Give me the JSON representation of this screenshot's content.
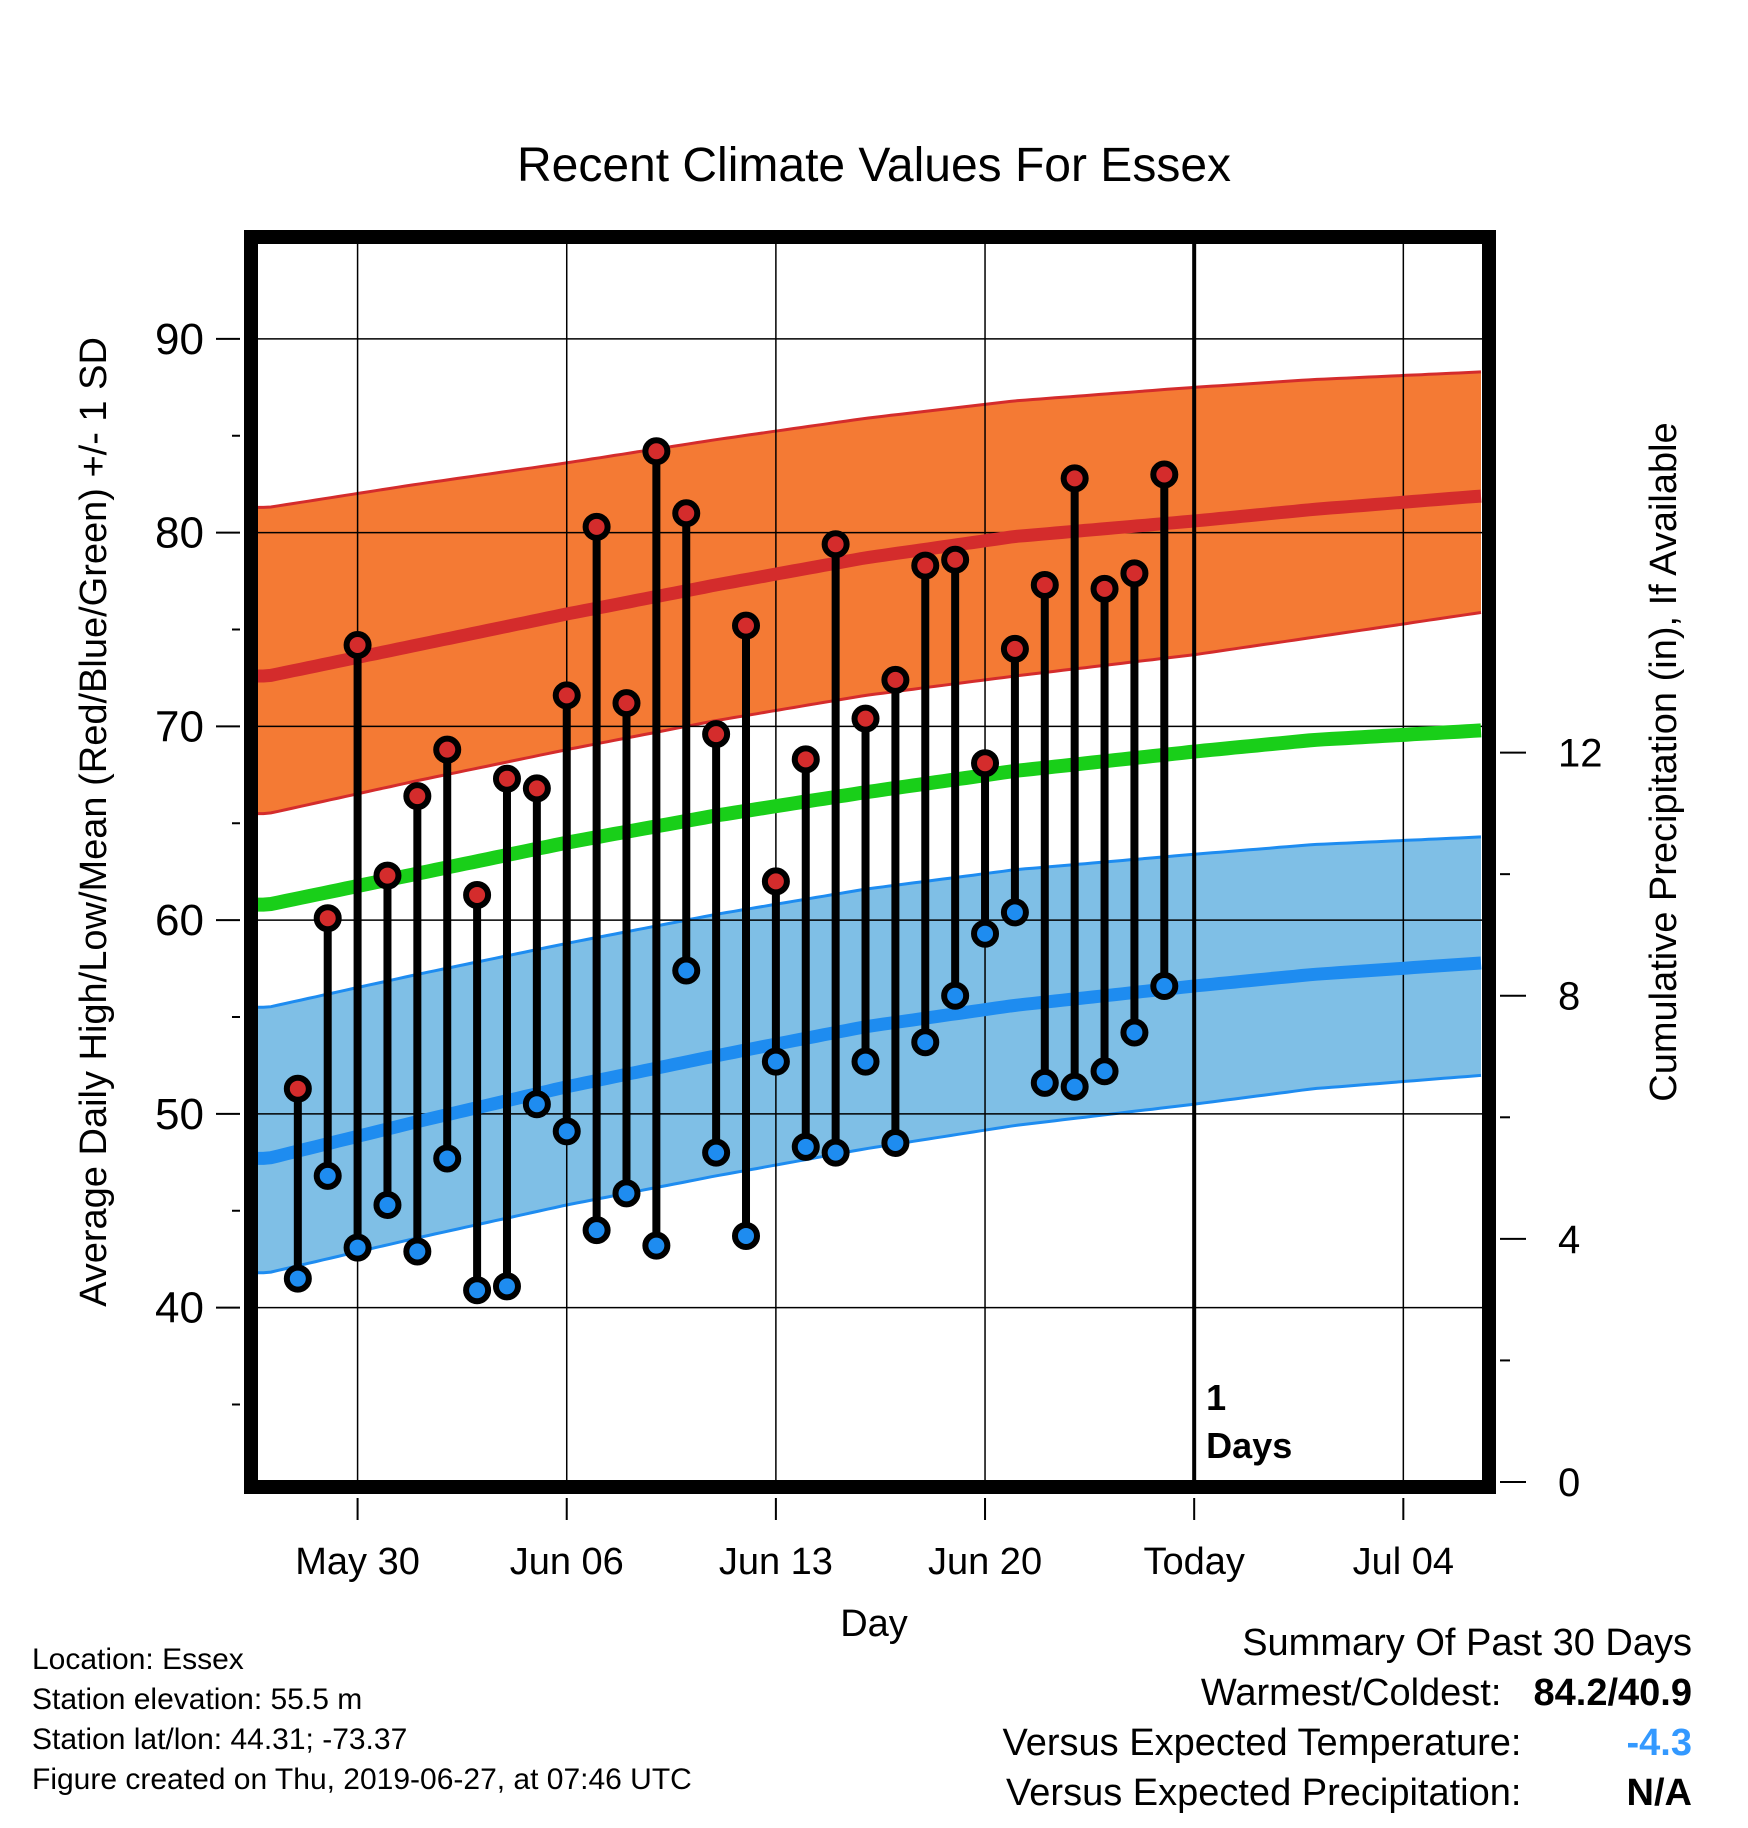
{
  "title": "Recent Climate Values For Essex",
  "chart_data": {
    "type": "line",
    "title": "Recent Climate Values For Essex",
    "xlabel": "Day",
    "ylabel_left": "Average Daily High/Low/Mean (Red/Blue/Green) +/- 1 SD",
    "ylabel_right": "Cumulative Precipitation (in), If Available",
    "x_tick_labels": [
      "May 30",
      "Jun 06",
      "Jun 13",
      "Jun 20",
      "Today",
      "Jul 04"
    ],
    "x_tick_days": [
      3,
      10,
      17,
      24,
      31,
      38
    ],
    "xlim": [
      -0.4,
      40.7
    ],
    "ylim_left": [
      31,
      95
    ],
    "y_ticks_left": [
      40,
      50,
      60,
      70,
      80,
      90
    ],
    "ylim_right": [
      0,
      20.4
    ],
    "y_ticks_right": [
      0,
      4,
      8,
      12
    ],
    "today_day": 31,
    "today_annotation": "1\nDays",
    "normal_high_mean": [
      [
        0,
        72.6
      ],
      [
        5,
        74.2
      ],
      [
        10,
        75.8
      ],
      [
        15,
        77.3
      ],
      [
        20,
        78.7
      ],
      [
        25,
        79.8
      ],
      [
        31,
        80.6
      ],
      [
        35,
        81.2
      ],
      [
        40.7,
        81.9
      ]
    ],
    "normal_high_upper": [
      [
        0,
        81.3
      ],
      [
        5,
        82.5
      ],
      [
        10,
        83.6
      ],
      [
        15,
        84.8
      ],
      [
        20,
        85.9
      ],
      [
        25,
        86.8
      ],
      [
        31,
        87.5
      ],
      [
        35,
        87.9
      ],
      [
        40.7,
        88.3
      ]
    ],
    "normal_high_lower": [
      [
        0,
        65.5
      ],
      [
        5,
        67.2
      ],
      [
        10,
        68.8
      ],
      [
        15,
        70.3
      ],
      [
        20,
        71.6
      ],
      [
        25,
        72.6
      ],
      [
        31,
        73.7
      ],
      [
        35,
        74.6
      ],
      [
        40.7,
        75.9
      ]
    ],
    "normal_mean": [
      [
        0,
        60.8
      ],
      [
        5,
        62.4
      ],
      [
        10,
        64.0
      ],
      [
        15,
        65.4
      ],
      [
        20,
        66.6
      ],
      [
        25,
        67.7
      ],
      [
        31,
        68.7
      ],
      [
        35,
        69.3
      ],
      [
        40.7,
        69.8
      ]
    ],
    "normal_low_mean": [
      [
        0,
        47.7
      ],
      [
        5,
        49.6
      ],
      [
        10,
        51.4
      ],
      [
        15,
        53.0
      ],
      [
        20,
        54.5
      ],
      [
        25,
        55.6
      ],
      [
        31,
        56.6
      ],
      [
        35,
        57.2
      ],
      [
        40.7,
        57.8
      ]
    ],
    "normal_low_upper": [
      [
        0,
        55.5
      ],
      [
        5,
        57.2
      ],
      [
        10,
        58.8
      ],
      [
        15,
        60.3
      ],
      [
        20,
        61.6
      ],
      [
        25,
        62.6
      ],
      [
        31,
        63.4
      ],
      [
        35,
        63.9
      ],
      [
        40.7,
        64.3
      ]
    ],
    "normal_low_lower": [
      [
        0,
        41.8
      ],
      [
        5,
        43.6
      ],
      [
        10,
        45.3
      ],
      [
        15,
        46.8
      ],
      [
        20,
        48.2
      ],
      [
        25,
        49.4
      ],
      [
        31,
        50.5
      ],
      [
        35,
        51.3
      ],
      [
        40.7,
        52.0
      ]
    ],
    "days": [
      1,
      2,
      3,
      4,
      5,
      6,
      7,
      8,
      9,
      10,
      11,
      12,
      13,
      14,
      15,
      16,
      17,
      18,
      19,
      20,
      21,
      22,
      23,
      24,
      25,
      26,
      27,
      28,
      29,
      30
    ],
    "daily_high": [
      51.3,
      60.1,
      74.2,
      62.3,
      66.4,
      68.8,
      61.3,
      67.3,
      66.8,
      71.6,
      80.3,
      71.2,
      84.2,
      81.0,
      69.6,
      75.2,
      62.0,
      68.3,
      79.4,
      70.4,
      72.4,
      78.3,
      78.6,
      68.1,
      74.0,
      77.3,
      82.8,
      77.1,
      77.9,
      83.0
    ],
    "daily_low": [
      41.5,
      46.8,
      43.1,
      45.3,
      42.9,
      47.7,
      40.9,
      41.1,
      50.5,
      49.1,
      44.0,
      45.9,
      43.2,
      57.4,
      48.0,
      43.7,
      52.7,
      48.3,
      48.0,
      52.7,
      48.5,
      53.7,
      56.1,
      59.3,
      60.4,
      51.6,
      51.4,
      52.2,
      54.2,
      56.6
    ],
    "colors": {
      "high_band": "#f47a34",
      "high_line": "#d42c2c",
      "low_band": "#7fbfe6",
      "low_line": "#1e8cf0",
      "mean_line": "#19cf19",
      "high_marker": "#d42c2c",
      "low_marker": "#1e8cf0"
    }
  },
  "footer": {
    "location": "Location: Essex",
    "elevation": "Station elevation: 55.5 m",
    "latlon": "Station lat/lon: 44.31; -73.37",
    "created": "Figure created on Thu, 2019-06-27, at 07:46 UTC"
  },
  "summary": {
    "heading": "Summary Of Past 30 Days",
    "warmest_label": "Warmest/Coldest:",
    "warmest_value": "84.2/40.9",
    "temp_label": "Versus Expected Temperature:",
    "temp_value": "-4.3",
    "temp_color": "#3399ff",
    "precip_label": "Versus Expected Precipitation:",
    "precip_value": "N/A"
  }
}
